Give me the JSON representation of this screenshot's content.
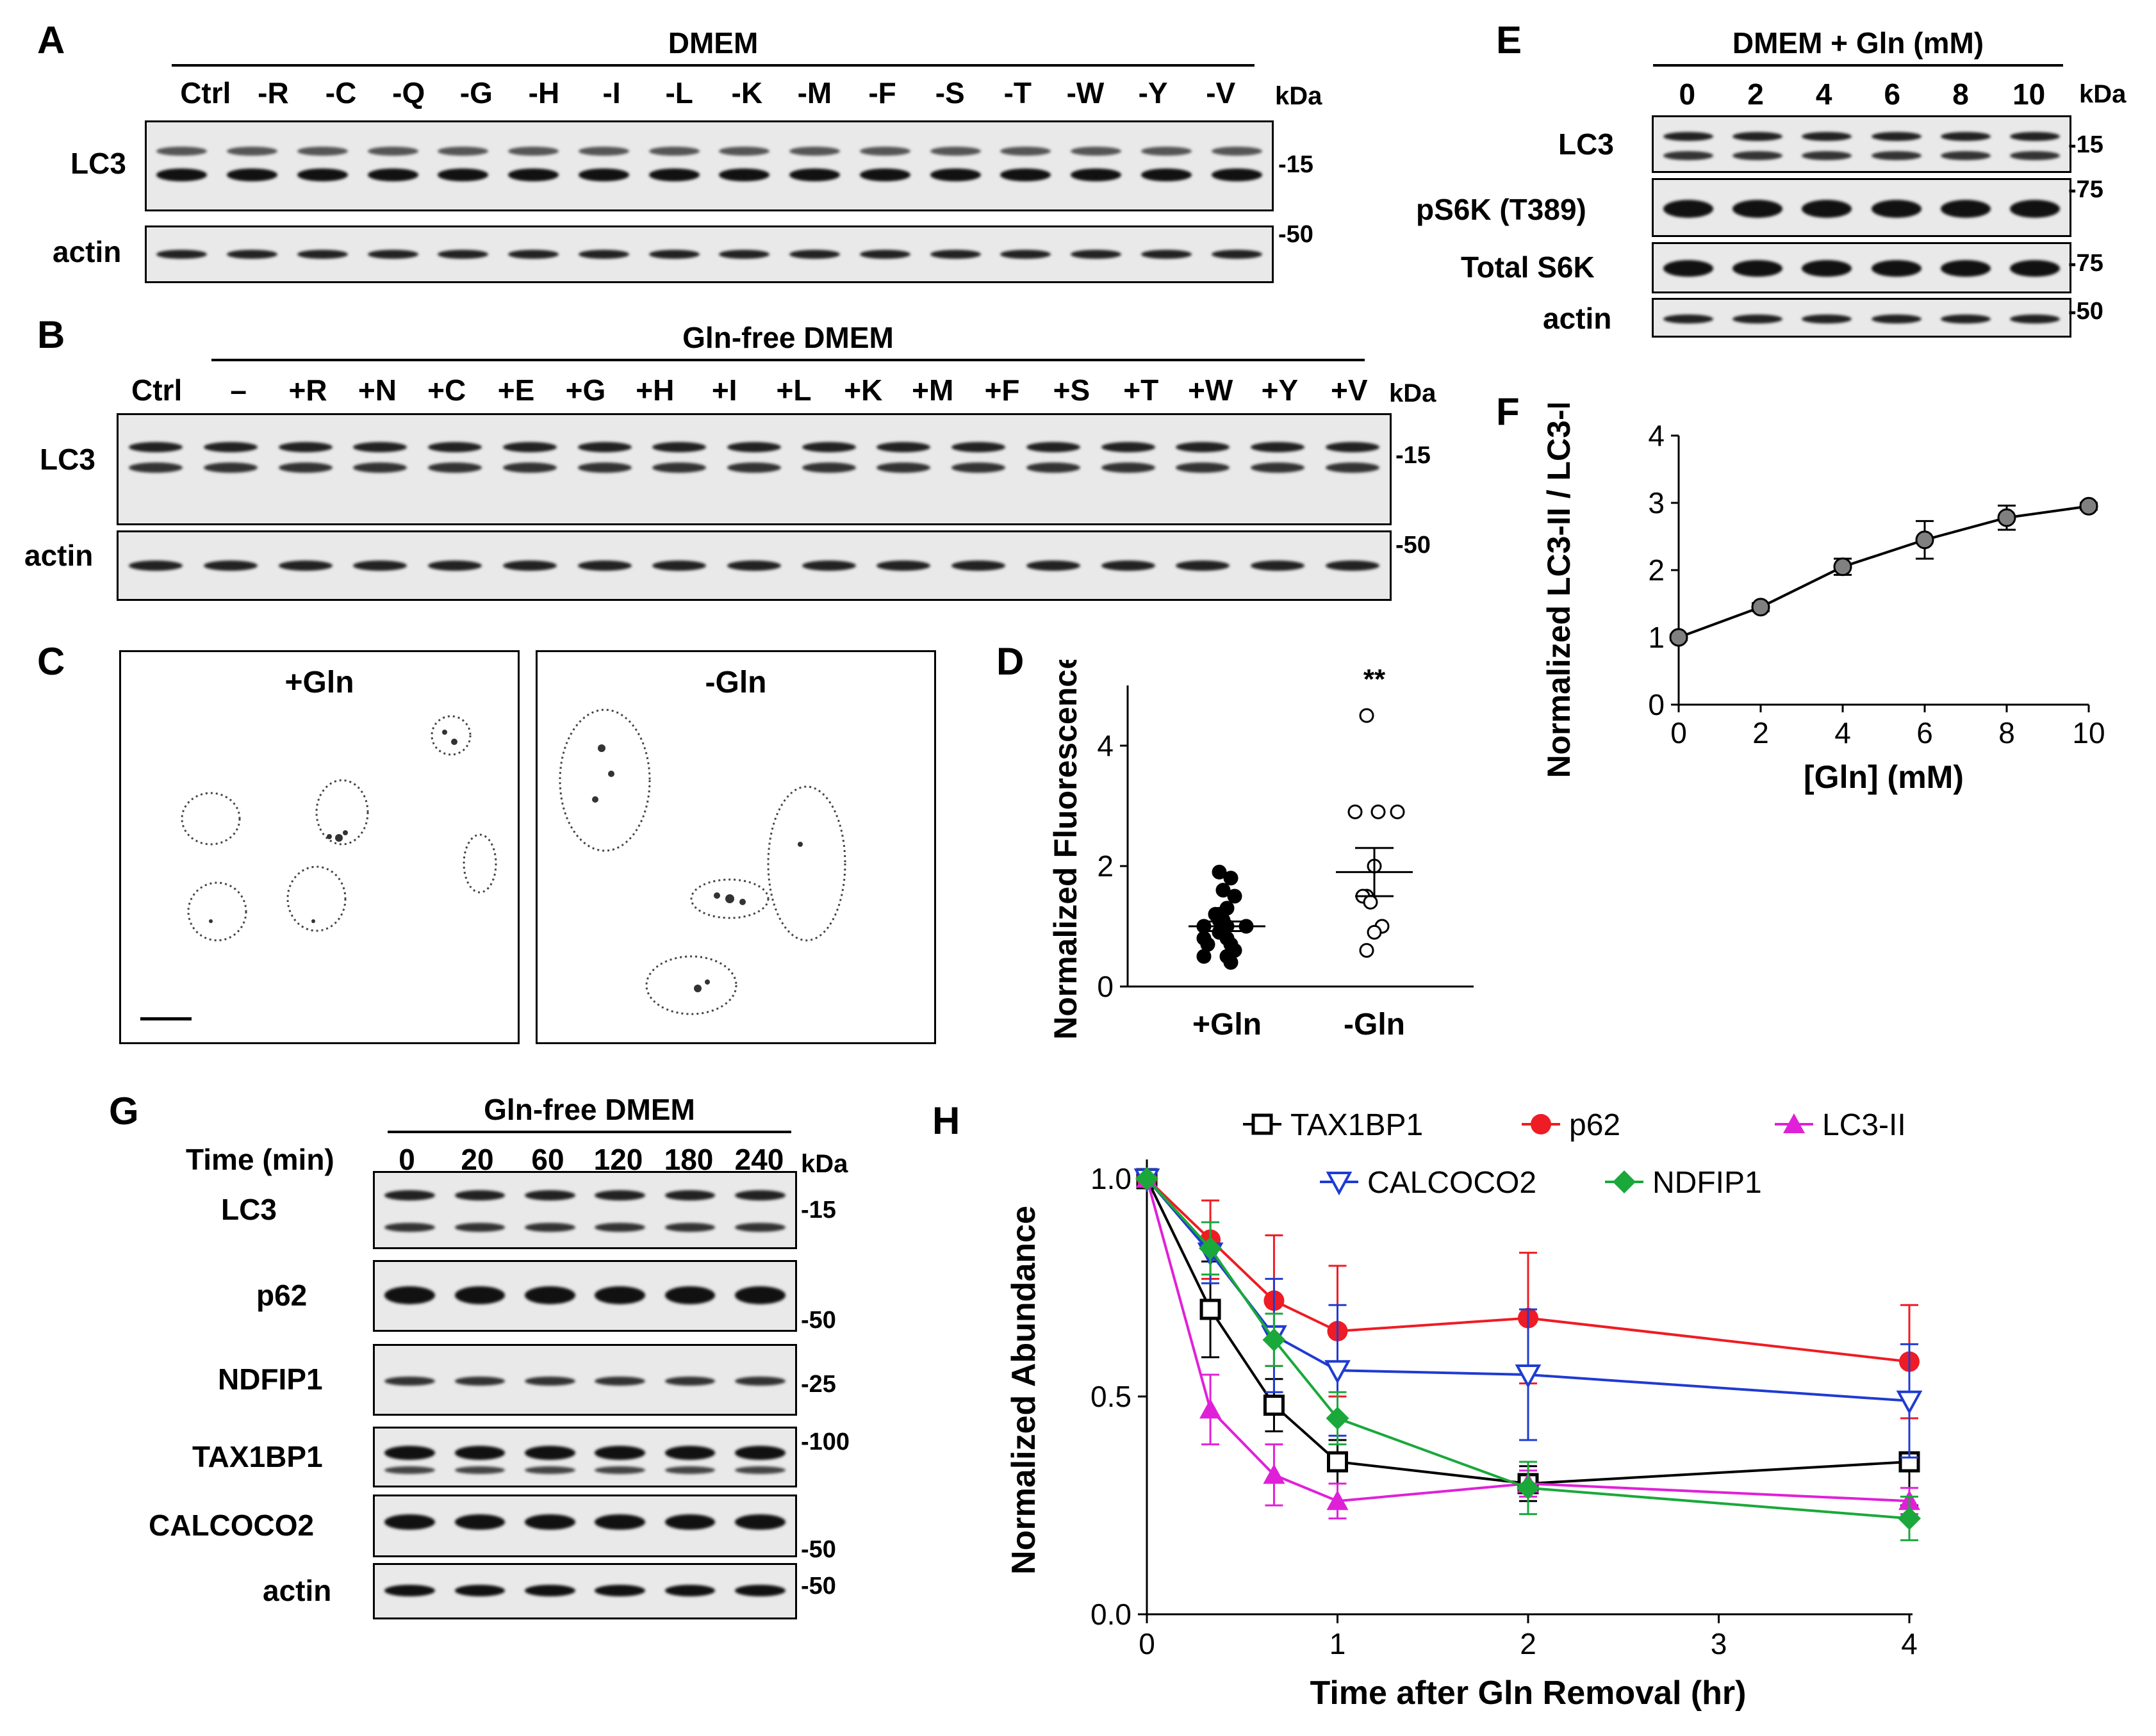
{
  "panels": {
    "A": "A",
    "B": "B",
    "C": "C",
    "D": "D",
    "E": "E",
    "F": "F",
    "G": "G",
    "H": "H"
  },
  "kda": "kDa",
  "panelA": {
    "header": "DMEM",
    "lanes": [
      "Ctrl",
      "-R",
      "-C",
      "-Q",
      "-G",
      "-H",
      "-I",
      "-L",
      "-K",
      "-M",
      "-F",
      "-S",
      "-T",
      "-W",
      "-Y",
      "-V"
    ],
    "rows": [
      "LC3",
      "actin"
    ],
    "mw": [
      "-15",
      "-50"
    ]
  },
  "panelB": {
    "header": "Gln-free DMEM",
    "ctrl": "Ctrl",
    "lanes": [
      "–",
      "+R",
      "+N",
      "+C",
      "+E",
      "+G",
      "+H",
      "+I",
      "+L",
      "+K",
      "+M",
      "+F",
      "+S",
      "+T",
      "+W",
      "+Y",
      "+V"
    ],
    "rows": [
      "LC3",
      "actin"
    ],
    "mw": [
      "-15",
      "-50"
    ]
  },
  "panelC": {
    "left": "+Gln",
    "right": "-Gln"
  },
  "panelE": {
    "header": "DMEM + Gln (mM)",
    "lanes": [
      "0",
      "2",
      "4",
      "6",
      "8",
      "10"
    ],
    "rows": [
      "LC3",
      "pS6K (T389)",
      "Total S6K",
      "actin"
    ],
    "mw": [
      "-15",
      "-75",
      "-75",
      "-50"
    ]
  },
  "panelG": {
    "header": "Gln-free DMEM",
    "time_label": "Time (min)",
    "lanes": [
      "0",
      "20",
      "60",
      "120",
      "180",
      "240"
    ],
    "rows": [
      "LC3",
      "p62",
      "NDFIP1",
      "TAX1BP1",
      "CALCOCO2",
      "actin"
    ],
    "mw": [
      "-15",
      "-50",
      "-25",
      "-100",
      "-50",
      "-50"
    ]
  },
  "colors": {
    "red": "#ee1c24",
    "blue": "#1f3bd1",
    "magenta": "#e020d8",
    "green": "#1aa83a",
    "black": "#000000",
    "gray": "#808080"
  },
  "chart_data": [
    {
      "panel": "D",
      "type": "scatter",
      "ylabel": "Normalized Fluorescence",
      "ylim": [
        0,
        5
      ],
      "yticks": [
        "0",
        "2",
        "4"
      ],
      "categories": [
        "+Gln",
        "-Gln"
      ],
      "significance": "**",
      "series": [
        {
          "name": "+Gln",
          "values": [
            1.9,
            1.8,
            1.6,
            1.5,
            1.3,
            1.2,
            1.2,
            1.1,
            1.1,
            1.0,
            1.0,
            1.0,
            0.9,
            0.9,
            0.8,
            0.8,
            0.7,
            0.7,
            0.6,
            0.5,
            0.5,
            0.4
          ],
          "mean": 1.0,
          "sem": 0.08
        },
        {
          "name": "-Gln",
          "values": [
            4.5,
            2.9,
            2.9,
            2.9,
            2.0,
            1.5,
            1.5,
            1.4,
            1.0,
            0.9,
            0.6
          ],
          "mean": 1.9,
          "sem": 0.4
        }
      ]
    },
    {
      "panel": "F",
      "type": "line",
      "xlabel": "[Gln] (mM)",
      "ylabel": "Normalized LC3-II / LC3-I",
      "xlim": [
        0,
        10
      ],
      "ylim": [
        0,
        4
      ],
      "xticks": [
        "0",
        "2",
        "4",
        "6",
        "8",
        "10"
      ],
      "yticks": [
        "0",
        "1",
        "2",
        "3",
        "4"
      ],
      "x": [
        0,
        2,
        4,
        6,
        8,
        10
      ],
      "y": [
        1.0,
        1.45,
        2.05,
        2.45,
        2.78,
        2.95
      ],
      "err": [
        0.04,
        0.06,
        0.12,
        0.28,
        0.18,
        0.05
      ]
    },
    {
      "panel": "H",
      "type": "line",
      "xlabel": "Time after Gln Removal (hr)",
      "ylabel": "Normalized Abundance",
      "xlim": [
        0,
        4
      ],
      "ylim": [
        0,
        1
      ],
      "xticks": [
        "0",
        "1",
        "2",
        "3",
        "4"
      ],
      "yticks": [
        "0.0",
        "0.5",
        "1.0"
      ],
      "x": [
        0,
        0.333,
        0.667,
        1,
        2,
        4
      ],
      "series": [
        {
          "name": "TAX1BP1",
          "y": [
            1.0,
            0.7,
            0.48,
            0.35,
            0.3,
            0.35
          ],
          "err": [
            0.0,
            0.11,
            0.06,
            0.05,
            0.04,
            0.1
          ]
        },
        {
          "name": "p62",
          "y": [
            1.0,
            0.86,
            0.72,
            0.65,
            0.68,
            0.58
          ],
          "err": [
            0.0,
            0.09,
            0.15,
            0.15,
            0.15,
            0.13
          ]
        },
        {
          "name": "LC3-II",
          "y": [
            1.0,
            0.47,
            0.32,
            0.26,
            0.3,
            0.26
          ],
          "err": [
            0.0,
            0.08,
            0.07,
            0.04,
            0.03,
            0.03
          ]
        },
        {
          "name": "CALCOCO2",
          "y": [
            1.0,
            0.83,
            0.64,
            0.56,
            0.55,
            0.49
          ],
          "err": [
            0.0,
            0.07,
            0.13,
            0.15,
            0.15,
            0.13
          ]
        },
        {
          "name": "NDFIP1",
          "y": [
            1.0,
            0.84,
            0.63,
            0.45,
            0.29,
            0.22
          ],
          "err": [
            0.0,
            0.06,
            0.06,
            0.06,
            0.06,
            0.05
          ]
        }
      ]
    }
  ]
}
